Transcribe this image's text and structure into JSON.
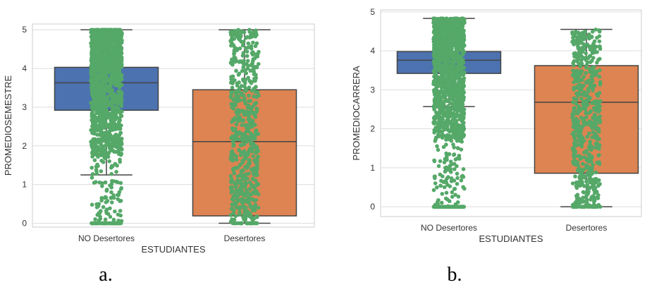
{
  "chart_data": [
    {
      "type": "box",
      "panel_label": "a.",
      "xlabel": "ESTUDIANTES",
      "ylabel": "PROMEDIOSEMESTRE",
      "categories": [
        "NO Desertores",
        "Desertores"
      ],
      "ylim": [
        -0.1,
        5.15
      ],
      "yticks": [
        0,
        1,
        2,
        3,
        4,
        5
      ],
      "grid": true,
      "boxes": [
        {
          "category": "NO Desertores",
          "color": "#4c72b0",
          "whisker_low": 1.25,
          "q1": 2.92,
          "median": 3.63,
          "q3": 4.03,
          "whisker_high": 5.0
        },
        {
          "category": "Desertores",
          "color": "#dd8452",
          "whisker_low": 0.0,
          "q1": 0.19,
          "median": 2.11,
          "q3": 3.45,
          "whisker_high": 5.0
        }
      ],
      "strip_color": "#55a868",
      "strip": [
        {
          "category": "NO Desertores",
          "density": "dense",
          "min": 0.0,
          "max": 5.0
        },
        {
          "category": "Desertores",
          "density": "moderate",
          "min": 0.0,
          "max": 5.0
        }
      ]
    },
    {
      "type": "box",
      "panel_label": "b.",
      "xlabel": "ESTUDIANTES",
      "ylabel": "PROMEDIOCARRERA",
      "categories": [
        "NO Desertores",
        "Desertores"
      ],
      "ylim": [
        -0.25,
        5.05
      ],
      "yticks": [
        0,
        1,
        2,
        3,
        4,
        5
      ],
      "grid": true,
      "boxes": [
        {
          "category": "NO Desertores",
          "color": "#4c72b0",
          "whisker_low": 2.57,
          "q1": 3.42,
          "median": 3.76,
          "q3": 3.98,
          "whisker_high": 4.83
        },
        {
          "category": "Desertores",
          "color": "#dd8452",
          "whisker_low": 0.0,
          "q1": 0.86,
          "median": 2.68,
          "q3": 3.62,
          "whisker_high": 4.55
        }
      ],
      "strip_color": "#55a868",
      "strip": [
        {
          "category": "NO Desertores",
          "density": "dense",
          "min": 0.0,
          "max": 4.83
        },
        {
          "category": "Desertores",
          "density": "moderate",
          "min": 0.0,
          "max": 4.55
        }
      ]
    }
  ]
}
